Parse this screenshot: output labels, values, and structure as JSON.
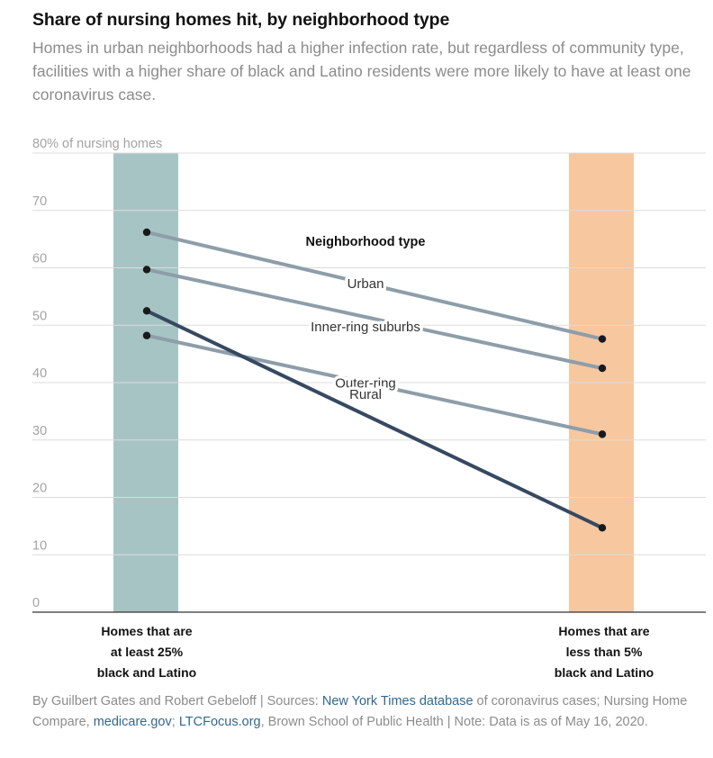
{
  "header": {
    "title": "Share of nursing homes hit, by neighborhood type",
    "subtitle": "Homes in urban neighborhoods had a higher infection rate, but regardless of community type, facilities with a higher share of black and Latino residents were more likely to have at least one coronavirus case."
  },
  "chart_data": {
    "type": "line",
    "categories": [
      "Homes that are at least 25% black and Latino",
      "Homes that are less than 5% black and Latino"
    ],
    "category_lines": [
      [
        "Homes that are",
        "at least 25%",
        "black and Latino"
      ],
      [
        "Homes that are",
        "less than 5%",
        "black and Latino"
      ]
    ],
    "ylabel": "80% of nursing homes",
    "ylim": [
      0,
      80
    ],
    "yticks": [
      0,
      10,
      20,
      30,
      40,
      50,
      60,
      70,
      80
    ],
    "ytick_labels": [
      "0",
      "10",
      "20",
      "30",
      "40",
      "50",
      "60",
      "70",
      "80% of nursing homes"
    ],
    "grid": true,
    "legend_title": "Neighborhood type",
    "series": [
      {
        "name": "Urban",
        "values": [
          66.2,
          47.6
        ],
        "color": "#8d9ea9"
      },
      {
        "name": "Inner-ring suburbs",
        "values": [
          59.7,
          42.5
        ],
        "color": "#8d9ea9"
      },
      {
        "name": "Outer-ring",
        "values": [
          48.2,
          31.0
        ],
        "color": "#8d9ea9"
      },
      {
        "name": "Rural",
        "values": [
          52.5,
          14.7
        ],
        "color": "#364961"
      }
    ],
    "category_colors": [
      "#a7c4c5",
      "#f7c7a0"
    ]
  },
  "footer": {
    "byline": "By Guilbert Gates and Robert Gebeloff | Sources: ",
    "link1": "New York Times database",
    "mid1": " of coronavirus cases; Nursing Home Compare, ",
    "link2": "medicare.gov",
    "mid2": "; ",
    "link3": "LTCFocus.org",
    "end": ", Brown School of Public Health | Note: Data is as of May 16, 2020."
  }
}
